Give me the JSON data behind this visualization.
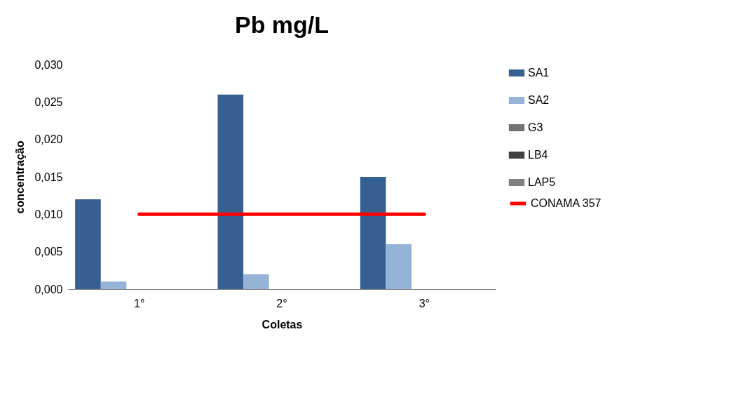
{
  "chart_data": {
    "type": "bar",
    "title": "Pb mg/L",
    "xlabel": "Coletas",
    "ylabel": "concentração",
    "categories": [
      "1°",
      "2°",
      "3°"
    ],
    "series": [
      {
        "name": "SA1",
        "color": "#366092",
        "values": [
          0.012,
          0.026,
          0.015
        ]
      },
      {
        "name": "SA2",
        "color": "#95b3d7",
        "values": [
          0.001,
          0.002,
          0.006
        ]
      },
      {
        "name": "G3",
        "color": "#727272",
        "values": [
          0,
          0,
          0
        ]
      },
      {
        "name": "LB4",
        "color": "#404040",
        "values": [
          0,
          0,
          0
        ]
      },
      {
        "name": "LAP5",
        "color": "#808080",
        "values": [
          0,
          0,
          0
        ]
      },
      {
        "name": "CONAMA 357",
        "type": "line",
        "color": "#ff0000",
        "values": [
          0.01,
          0.01,
          0.01
        ]
      }
    ],
    "ylim": [
      0,
      0.03
    ],
    "yticks": [
      {
        "value": 0,
        "label": "0,000"
      },
      {
        "value": 0.005,
        "label": "0,005"
      },
      {
        "value": 0.01,
        "label": "0,010"
      },
      {
        "value": 0.015,
        "label": "0,015"
      },
      {
        "value": 0.02,
        "label": "0,020"
      },
      {
        "value": 0.025,
        "label": "0,025"
      },
      {
        "value": 0.03,
        "label": "0,030"
      }
    ],
    "grid": false,
    "legend": "right",
    "marker": "none"
  }
}
